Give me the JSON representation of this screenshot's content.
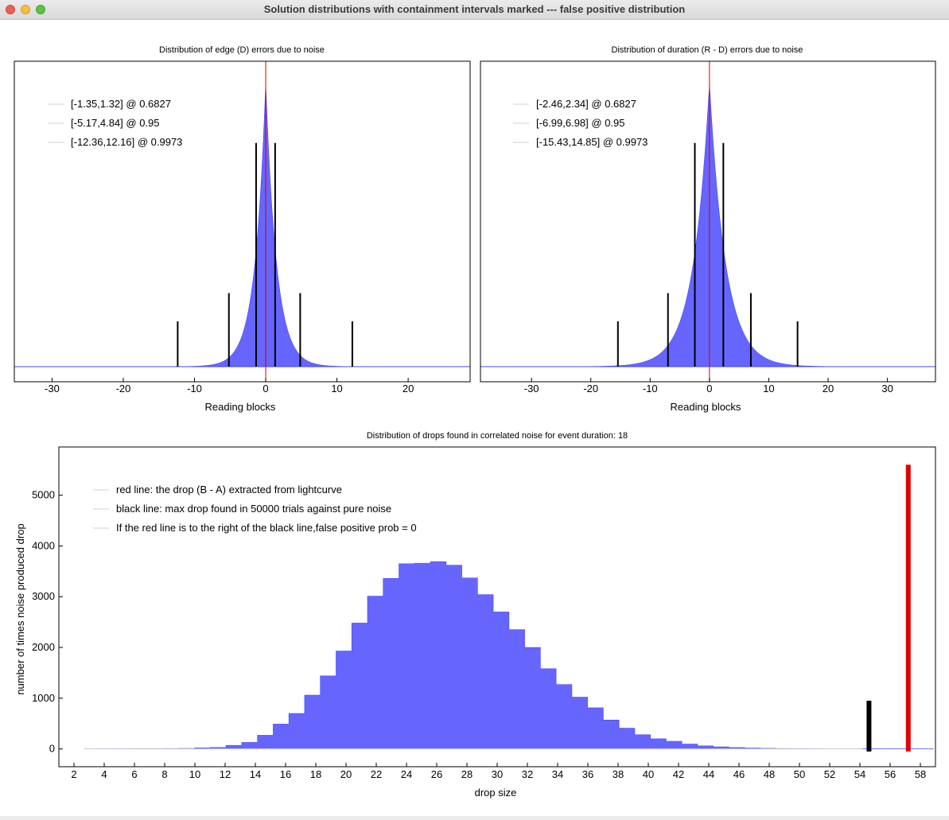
{
  "window": {
    "title": "Solution distributions with containment intervals marked --- false positive distribution",
    "controls": [
      "close-icon",
      "minimize-icon",
      "maximize-icon"
    ]
  },
  "colors": {
    "hist_fill": "#6666ff",
    "hist_line": "#4444ff",
    "interval": "#000000",
    "marker": "#dd0000",
    "legend_line": "#d0d0d0"
  },
  "chart_data": [
    {
      "type": "bar",
      "title": "Distribution of edge (D) errors due to noise",
      "xlabel": "Reading blocks",
      "ylabel": "",
      "xlim": [
        -35.3,
        28.7
      ],
      "xticks": [
        -30,
        -20,
        -10,
        0,
        10,
        20
      ],
      "center_marker": 0,
      "distribution": {
        "shape": "laplace",
        "center": 0,
        "scale": 1.5,
        "relative_peak": 1.0
      },
      "legend": [
        "[-1.35,1.32] @ 0.6827",
        "[-5.17,4.84] @ 0.95",
        "[-12.36,12.16] @ 0.9973"
      ],
      "intervals": [
        {
          "low": -1.35,
          "high": 1.32,
          "confidence": 0.6827,
          "relative_height": 0.79
        },
        {
          "low": -5.17,
          "high": 4.84,
          "confidence": 0.95,
          "relative_height": 0.26
        },
        {
          "low": -12.36,
          "high": 12.16,
          "confidence": 0.9973,
          "relative_height": 0.16
        }
      ]
    },
    {
      "type": "bar",
      "title": "Distribution of duration (R - D) errors due to noise",
      "xlabel": "Reading blocks",
      "ylabel": "",
      "xlim": [
        -38.6,
        38.1
      ],
      "xticks": [
        -30,
        -20,
        -10,
        0,
        10,
        20,
        30
      ],
      "center_marker": 0,
      "distribution": {
        "shape": "laplace",
        "center": 0,
        "scale": 2.7,
        "relative_peak": 1.0
      },
      "legend": [
        "[-2.46,2.34] @ 0.6827",
        "[-6.99,6.98] @ 0.95",
        "[-15.43,14.85] @ 0.9973"
      ],
      "intervals": [
        {
          "low": -2.46,
          "high": 2.34,
          "confidence": 0.6827,
          "relative_height": 0.79
        },
        {
          "low": -6.99,
          "high": 6.98,
          "confidence": 0.95,
          "relative_height": 0.26
        },
        {
          "low": -15.43,
          "high": 14.85,
          "confidence": 0.9973,
          "relative_height": 0.16
        }
      ]
    },
    {
      "type": "bar",
      "title": "Distribution of drops found in correlated noise for event duration: 18",
      "xlabel": "drop size",
      "ylabel": "number of times noise produced drop",
      "xlim": [
        1,
        59
      ],
      "ylim": [
        -350,
        5950
      ],
      "xticks": [
        2,
        4,
        6,
        8,
        10,
        12,
        14,
        16,
        18,
        20,
        22,
        24,
        26,
        28,
        30,
        32,
        34,
        36,
        38,
        40,
        42,
        44,
        46,
        48,
        50,
        52,
        54,
        56,
        58
      ],
      "yticks": [
        0,
        1000,
        2000,
        3000,
        4000,
        5000
      ],
      "bins": {
        "start": 2.7,
        "width": 1.04,
        "counts": [
          2,
          3,
          4,
          5,
          6,
          8,
          10,
          20,
          30,
          70,
          130,
          270,
          490,
          700,
          1060,
          1440,
          1930,
          2480,
          3010,
          3360,
          3650,
          3660,
          3690,
          3620,
          3370,
          3040,
          2700,
          2350,
          2000,
          1580,
          1270,
          1020,
          810,
          570,
          410,
          280,
          200,
          150,
          95,
          60,
          40,
          28,
          18,
          12,
          8,
          5,
          3,
          2,
          2,
          1,
          1,
          1,
          1,
          1
        ]
      },
      "black_line": {
        "x": 54.6,
        "value": 950
      },
      "red_line": {
        "x": 57.2,
        "value": 5600
      },
      "legend": [
        "red line: the drop (B - A) extracted from lightcurve",
        "black line: max drop found in 50000 trials against pure noise",
        "If the red line is to the right of the black line,false positive prob = 0"
      ]
    }
  ]
}
